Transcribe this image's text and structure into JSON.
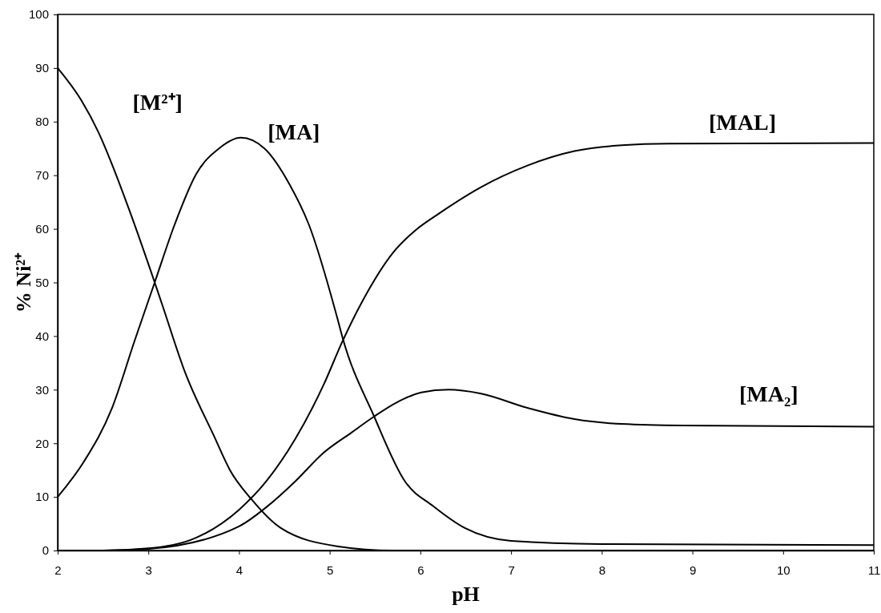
{
  "chart_data": {
    "type": "line",
    "xlabel": "pH",
    "ylabel": "% Ni²⁺",
    "xlim": [
      2,
      11
    ],
    "ylim": [
      0,
      100
    ],
    "xticks": [
      2,
      3,
      4,
      5,
      6,
      7,
      8,
      9,
      10,
      11
    ],
    "yticks": [
      0,
      10,
      20,
      30,
      40,
      50,
      60,
      70,
      80,
      90,
      100
    ],
    "series": [
      {
        "name": "[M²⁺]",
        "color": "#000000",
        "x": [
          2,
          2.26,
          2.45,
          2.6,
          2.79,
          3.07,
          3.15,
          3.41,
          3.72,
          3.9,
          4.14,
          4.46,
          5.08,
          5.7,
          6.5,
          8,
          11
        ],
        "values": [
          90,
          84,
          78,
          72,
          63.5,
          50,
          46,
          33,
          21.5,
          15,
          9.5,
          4.2,
          0.8,
          0,
          0,
          0,
          0
        ]
      },
      {
        "name": "[MA]",
        "color": "#000000",
        "x": [
          2,
          2.29,
          2.6,
          2.85,
          3.07,
          3.29,
          3.53,
          3.78,
          4.02,
          4.28,
          4.56,
          4.77,
          5.08,
          5.14,
          5.49,
          5.83,
          6.14,
          6.49,
          7,
          8,
          11
        ],
        "values": [
          10,
          16.6,
          26.6,
          39.2,
          50,
          60.8,
          70.3,
          75,
          77,
          75,
          68.2,
          60.8,
          43.6,
          39.8,
          25,
          12.9,
          8.3,
          4.2,
          1.8,
          1.2,
          1
        ]
      },
      {
        "name": "[MAL]",
        "color": "#000000",
        "x": [
          2,
          2.5,
          3,
          3.53,
          4,
          4.3,
          4.62,
          4.93,
          5.14,
          5.36,
          5.7,
          5.95,
          6.2,
          6.66,
          7.18,
          7.7,
          8.22,
          8.74,
          11
        ],
        "values": [
          0,
          0,
          0.4,
          2.4,
          7.6,
          12.9,
          20.8,
          30.8,
          39,
          46.5,
          55.6,
          59.8,
          62.8,
          67.7,
          71.8,
          74.5,
          75.6,
          75.9,
          76
        ]
      },
      {
        "name": "[MA₂]",
        "color": "#000000",
        "x": [
          2,
          2.5,
          3,
          4,
          4.31,
          4.62,
          4.93,
          5.24,
          5.49,
          5.77,
          6.01,
          6.31,
          6.66,
          7.18,
          7.7,
          8.22,
          8.91,
          11
        ],
        "values": [
          0,
          0,
          0.3,
          4.5,
          8.2,
          12.9,
          18.2,
          22,
          25,
          27.9,
          29.5,
          30,
          29.3,
          26.6,
          24.5,
          23.6,
          23.3,
          23.1
        ]
      }
    ]
  }
}
